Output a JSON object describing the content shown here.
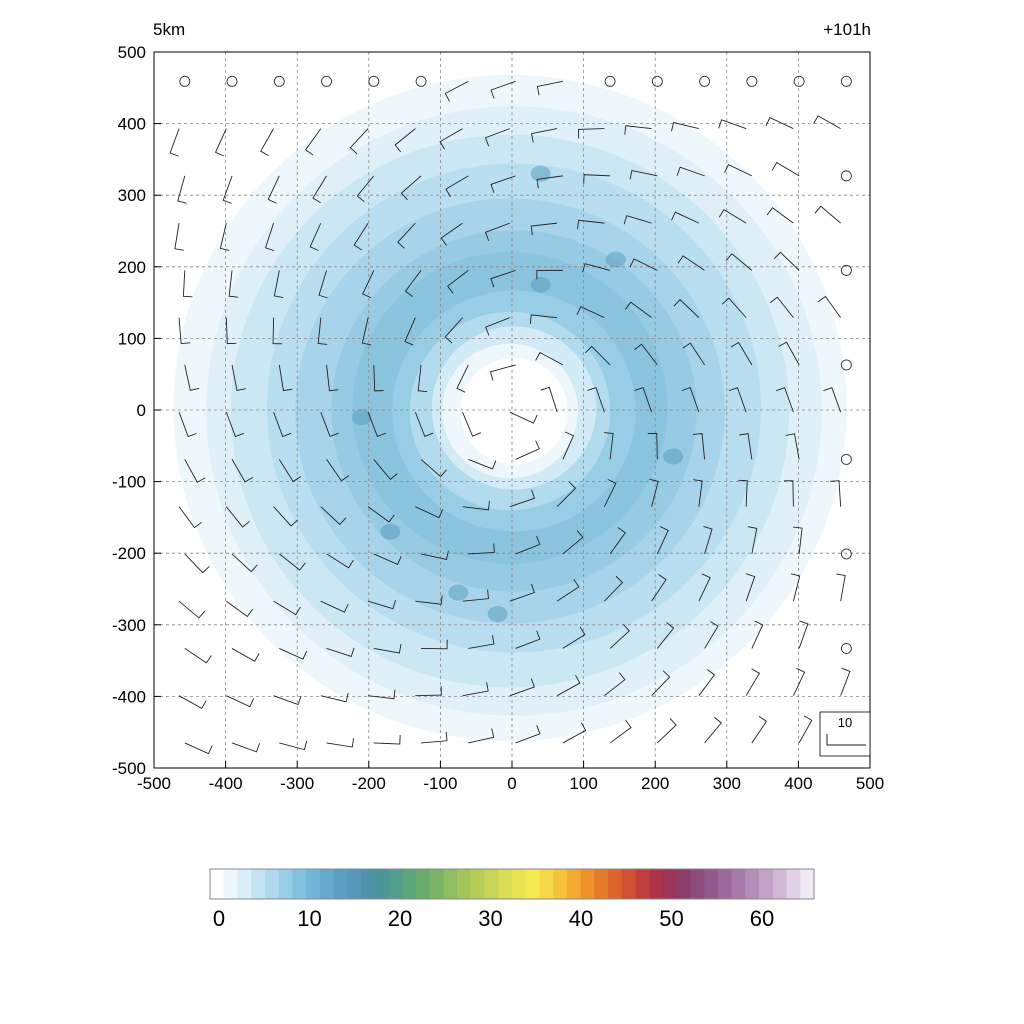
{
  "chart_data": [
    {
      "type": "heatmap",
      "title_left": "5km",
      "title_right": "+101h",
      "xlim": [
        -500,
        500
      ],
      "ylim": [
        -500,
        500
      ],
      "x_ticks": [
        -500,
        -400,
        -300,
        -200,
        -100,
        0,
        100,
        200,
        300,
        400,
        500
      ],
      "y_ticks": [
        -500,
        -400,
        -300,
        -200,
        -100,
        0,
        100,
        200,
        300,
        400,
        500
      ],
      "grid": true,
      "field": {
        "description_values": "annular ring of moderate values (about 5-15) centered near (0,0), clear center near radius < 100, ring peak near radius 200, fading to near 0 beyond radius 450",
        "ring_center": [
          0,
          0
        ],
        "ring_peak_radius": 200,
        "ring_peak_value": 14,
        "eye_radius": 90
      },
      "wind_barbs": {
        "spacing": 66,
        "rotation": "cyclonic",
        "reference_label": "10"
      }
    },
    {
      "type": "colorbar",
      "range": [
        0,
        65
      ],
      "tick_values": [
        0,
        10,
        20,
        30,
        40,
        50,
        60
      ],
      "tick_labels": [
        "0",
        "10",
        "20",
        "30",
        "40",
        "50",
        "60"
      ],
      "colors": [
        "#ffffff",
        "#eef7fc",
        "#d9eef8",
        "#c4e4f3",
        "#aed9ee",
        "#98cde6",
        "#84c1df",
        "#72b5d6",
        "#65a9cc",
        "#5d9fc3",
        "#5797b8",
        "#4f91a8",
        "#4a9598",
        "#4f9d8a",
        "#5aa57c",
        "#68ad6f",
        "#7ab566",
        "#8ebe5f",
        "#a2c65a",
        "#b6ce57",
        "#c9d556",
        "#dadd55",
        "#e9e454",
        "#f6e952",
        "#f8d848",
        "#f6c23c",
        "#f3aa32",
        "#ee922c",
        "#e67a2b",
        "#dc642c",
        "#cf4f32",
        "#c03e3c",
        "#ad3348",
        "#9c3358",
        "#8d3c6a",
        "#8a4a7c",
        "#92598d",
        "#9c699c",
        "#a87aab",
        "#b48db9",
        "#c2a2c7",
        "#d1b9d6",
        "#e1d2e6",
        "#f1e9f5"
      ]
    }
  ]
}
